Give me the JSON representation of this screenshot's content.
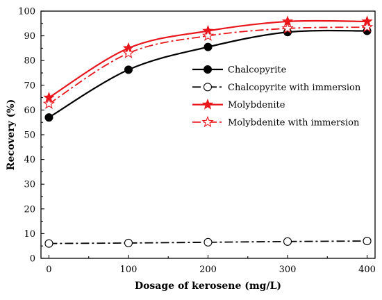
{
  "chart_data": {
    "type": "line",
    "xlabel": "Dosage of kerosene (mg/L)",
    "ylabel": "Recovery (%)",
    "x": [
      0,
      100,
      200,
      300,
      400
    ],
    "xlim": [
      -10,
      410
    ],
    "ylim": [
      0,
      100
    ],
    "xticks": [
      0,
      100,
      200,
      300,
      400
    ],
    "yticks": [
      0,
      10,
      20,
      30,
      40,
      50,
      60,
      70,
      80,
      90,
      100
    ],
    "grid": false,
    "legend_position": "right",
    "series": [
      {
        "name": "Chalcopyrite",
        "values": [
          57.0,
          76.3,
          85.5,
          91.5,
          92.0
        ],
        "color": "#000000",
        "line": "solid",
        "marker": "filled-circle"
      },
      {
        "name": "Chalcopyrite with immersion",
        "values": [
          6.0,
          6.2,
          6.5,
          6.8,
          7.0
        ],
        "color": "#000000",
        "line": "dashdot",
        "marker": "open-circle"
      },
      {
        "name": "Molybdenite",
        "values": [
          65.0,
          85.0,
          92.0,
          95.8,
          95.8
        ],
        "color": "#e8151b",
        "line": "solid",
        "marker": "filled-star"
      },
      {
        "name": "Molybdenite with immersion",
        "values": [
          62.5,
          83.0,
          90.0,
          93.0,
          93.5
        ],
        "color": "#e8151b",
        "line": "dashdot",
        "marker": "open-star"
      }
    ]
  }
}
